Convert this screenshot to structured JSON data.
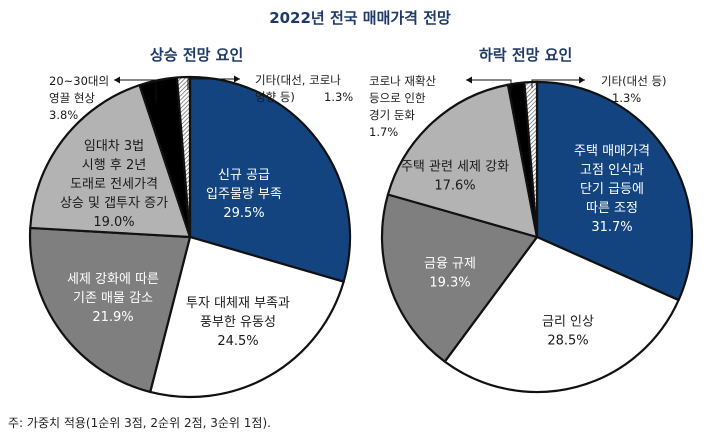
{
  "title": "2022년 전국 매매가격 전망",
  "footnote": "주: 가중치 적용(1순위 3점, 2순위 2점, 3순위 1점).",
  "chart_data": [
    {
      "type": "pie",
      "title": "상승 전망 요인",
      "slices": [
        {
          "label": [
            "신규 공급",
            "입주물량 부족"
          ],
          "value": 29.5,
          "value_text": "29.5%",
          "color": "#134480",
          "text_color": "#ffffff"
        },
        {
          "label": [
            "투자 대체재 부족과",
            "풍부한 유동성"
          ],
          "value": 24.5,
          "value_text": "24.5%",
          "color": "#ffffff",
          "text_color": "#1a1a1a"
        },
        {
          "label": [
            "세제 강화에 따른",
            "기존 매물 감소"
          ],
          "value": 21.9,
          "value_text": "21.9%",
          "color": "#7f7f7f",
          "text_color": "#ffffff"
        },
        {
          "label": [
            "임대차 3법",
            "시행 후 2년",
            "도래로 전세가격",
            "상승 및 갭투자 증가"
          ],
          "value": 19.0,
          "value_text": "19.0%",
          "color": "#b3b3b3",
          "text_color": "#1a1a1a"
        },
        {
          "label": [
            "20~30대의",
            "영끌 현상"
          ],
          "value": 3.8,
          "value_text": "3.8%",
          "color": "#000000",
          "text_color": "#1a1a1a"
        },
        {
          "label": [
            "기타(대선, 코로나",
            "영향 등)"
          ],
          "value": 1.3,
          "value_text": "1.3%",
          "color": "#ffffff",
          "text_color": "#1a1a1a"
        }
      ]
    },
    {
      "type": "pie",
      "title": "하락 전망 요인",
      "slices": [
        {
          "label": [
            "주택 매매가격",
            "고점 인식과",
            "단기 급등에",
            "따른 조정"
          ],
          "value": 31.7,
          "value_text": "31.7%",
          "color": "#134480",
          "text_color": "#ffffff"
        },
        {
          "label": [
            "금리 인상"
          ],
          "value": 28.5,
          "value_text": "28.5%",
          "color": "#ffffff",
          "text_color": "#1a1a1a"
        },
        {
          "label": [
            "금융 규제"
          ],
          "value": 19.3,
          "value_text": "19.3%",
          "color": "#7f7f7f",
          "text_color": "#ffffff"
        },
        {
          "label": [
            "주택 관련 세제 강화"
          ],
          "value": 17.6,
          "value_text": "17.6%",
          "color": "#b3b3b3",
          "text_color": "#1a1a1a"
        },
        {
          "label": [
            "코로나 재확산",
            "등으로 인한",
            "경기 둔화"
          ],
          "value": 1.7,
          "value_text": "1.7%",
          "color": "#000000",
          "text_color": "#1a1a1a"
        },
        {
          "label": [
            "기타(대선 등)"
          ],
          "value": 1.3,
          "value_text": "1.3%",
          "color": "#ffffff",
          "text_color": "#1a1a1a"
        }
      ]
    }
  ]
}
